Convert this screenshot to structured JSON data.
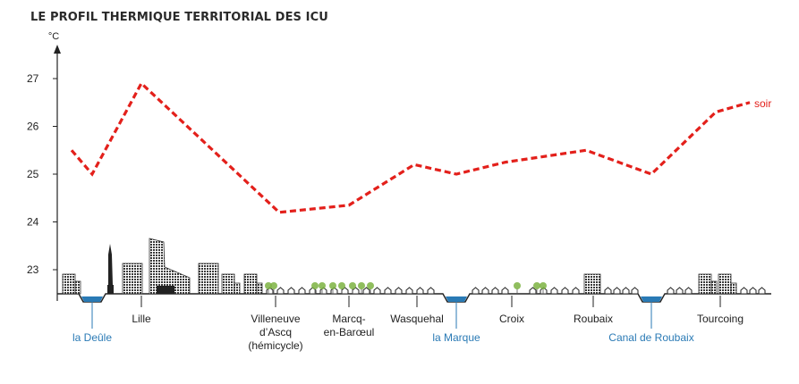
{
  "chart_data": {
    "type": "line",
    "title": "LE PROFIL THERMIQUE TERRITORIAL DES ICU",
    "ylabel": "°C",
    "ylim": [
      22.5,
      27.6
    ],
    "yticks": [
      23,
      24,
      25,
      26,
      27
    ],
    "series": [
      {
        "name": "soir",
        "color": "#e3201b",
        "points": [
          {
            "x": 0,
            "y": 25.5
          },
          {
            "x": 1,
            "y": 25.0
          },
          {
            "x": 2,
            "y": 26.9
          },
          {
            "x": 3,
            "y": 24.2
          },
          {
            "x": 4,
            "y": 24.35
          },
          {
            "x": 5,
            "y": 25.2
          },
          {
            "x": 6,
            "y": 25.0
          },
          {
            "x": 7,
            "y": 25.25
          },
          {
            "x": 8,
            "y": 25.5
          },
          {
            "x": 9,
            "y": 25.0
          },
          {
            "x": 10,
            "y": 26.3
          },
          {
            "x": 11,
            "y": 26.5
          }
        ]
      }
    ],
    "places": [
      {
        "name": "Lille",
        "kind": "city"
      },
      {
        "name": "Villeneuve d’Ascq (hémicycle)",
        "lines": [
          "Villeneuve",
          "d’Ascq",
          "(hémicycle)"
        ],
        "kind": "city"
      },
      {
        "name": "Marcq-en-Barœul",
        "lines": [
          "Marcq-",
          "en-Barœul"
        ],
        "kind": "city"
      },
      {
        "name": "Wasquehal",
        "kind": "city"
      },
      {
        "name": "Croix",
        "kind": "city"
      },
      {
        "name": "Roubaix",
        "kind": "city"
      },
      {
        "name": "Tourcoing",
        "kind": "city"
      }
    ],
    "waterways": [
      {
        "name": "la Deûle"
      },
      {
        "name": "la Marque"
      },
      {
        "name": "Canal de Roubaix"
      }
    ],
    "colors": {
      "series": "#e3201b",
      "water": "#2a7ab5",
      "buildings": "#333333",
      "trees": "#7cb342"
    }
  }
}
